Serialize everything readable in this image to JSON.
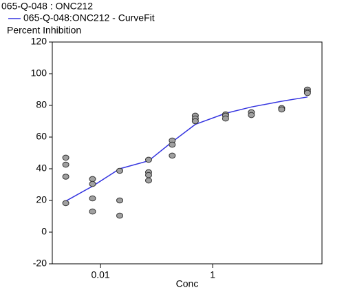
{
  "chart_data": {
    "type": "scatter",
    "y_label": "Percent Inhibition",
    "x_label": "Conc",
    "xscale": "log",
    "xlim": [
      0.00138,
      89
    ],
    "ylim": [
      -20,
      120
    ],
    "xticks": [
      0.01,
      1
    ],
    "yticks": [
      -20,
      0,
      20,
      40,
      60,
      80,
      100,
      120
    ],
    "grid": false,
    "series": [
      {
        "name": "065-Q-048  : ONC212",
        "type": "scatter",
        "color": "#a0a0a0",
        "x": [
          0.0024,
          0.0024,
          0.0024,
          0.0024,
          0.0072,
          0.0072,
          0.0072,
          0.0072,
          0.022,
          0.022,
          0.022,
          0.072,
          0.072,
          0.072,
          0.072,
          0.19,
          0.19,
          0.19,
          0.49,
          0.49,
          0.49,
          1.7,
          1.7,
          1.7,
          4.9,
          4.9,
          17,
          17,
          49,
          49,
          49
        ],
        "values": [
          47,
          42.6,
          35,
          18.3,
          33.5,
          30.4,
          21.3,
          13,
          38.7,
          20,
          10.4,
          45.7,
          37.8,
          36,
          32.6,
          57.8,
          55.2,
          48.3,
          73.5,
          71.7,
          70,
          74.3,
          73.5,
          71.7,
          75.7,
          73.9,
          78.3,
          77.4,
          90,
          88.7,
          87.8
        ]
      },
      {
        "name": "065-Q-048:ONC212 - CurveFit",
        "type": "line",
        "color": "#3535e0",
        "x": [
          0.0024,
          0.0072,
          0.022,
          0.072,
          0.19,
          0.49,
          1.7,
          4.9,
          17,
          49
        ],
        "values": [
          19.6,
          29,
          40,
          45,
          57,
          68,
          75,
          79,
          82.6,
          85.3
        ]
      }
    ]
  }
}
